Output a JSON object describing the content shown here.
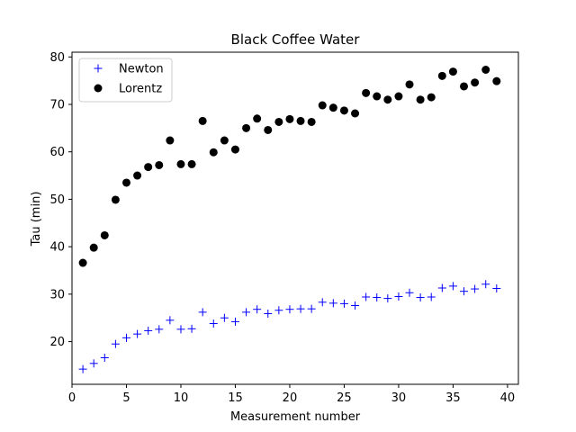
{
  "chart_data": {
    "type": "scatter",
    "title": "Black Coffee Water",
    "xlabel": "Measurement number",
    "ylabel": "Tau (min)",
    "xlim": [
      0,
      41
    ],
    "ylim": [
      11,
      81
    ],
    "xticks": [
      0,
      5,
      10,
      15,
      20,
      25,
      30,
      35,
      40
    ],
    "yticks": [
      20,
      30,
      40,
      50,
      60,
      70,
      80
    ],
    "grid": false,
    "legend": "top-left",
    "x": [
      1,
      2,
      3,
      4,
      5,
      6,
      7,
      8,
      9,
      10,
      11,
      12,
      13,
      14,
      15,
      16,
      17,
      18,
      19,
      20,
      21,
      22,
      23,
      24,
      25,
      26,
      27,
      28,
      29,
      30,
      31,
      32,
      33,
      34,
      35,
      36,
      37,
      38,
      39
    ],
    "series": [
      {
        "name": "Newton",
        "marker": "plus",
        "color": "#0000ff",
        "values": [
          14.2,
          15.4,
          16.6,
          19.5,
          20.8,
          21.6,
          22.3,
          22.6,
          24.5,
          22.6,
          22.7,
          26.2,
          23.8,
          25.0,
          24.2,
          26.2,
          26.8,
          25.9,
          26.6,
          26.8,
          26.9,
          26.9,
          28.3,
          28.1,
          28.0,
          27.6,
          29.4,
          29.3,
          29.1,
          29.5,
          30.3,
          29.3,
          29.4,
          31.3,
          31.7,
          30.6,
          31.1,
          32.1,
          31.2
        ]
      },
      {
        "name": "Lorentz",
        "marker": "circle",
        "color": "#000000",
        "values": [
          36.6,
          39.8,
          42.4,
          49.9,
          53.5,
          55.0,
          56.8,
          57.2,
          62.4,
          57.4,
          57.4,
          66.5,
          59.9,
          62.4,
          60.5,
          65.0,
          67.0,
          64.6,
          66.3,
          66.9,
          66.5,
          66.3,
          69.8,
          69.3,
          68.7,
          68.1,
          72.4,
          71.7,
          71.0,
          71.7,
          74.2,
          71.0,
          71.5,
          76.0,
          76.9,
          73.8,
          74.6,
          77.3,
          74.9
        ]
      }
    ]
  }
}
